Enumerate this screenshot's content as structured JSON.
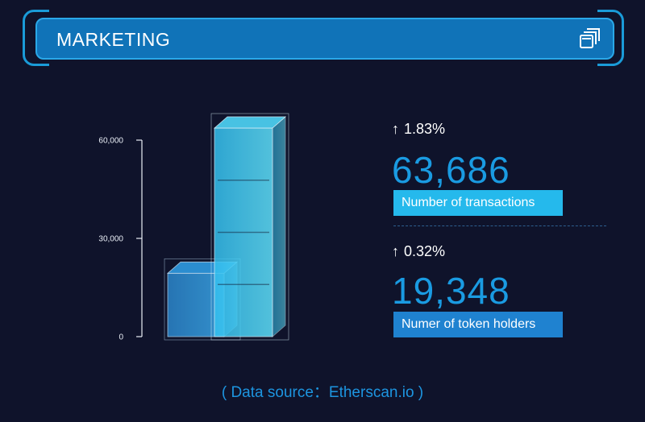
{
  "header": {
    "title": "MARKETING",
    "icon": "copy-windows-icon"
  },
  "chart_data": {
    "type": "bar",
    "style": "3d-stacked-cubes",
    "categories": [
      "token holders",
      "transactions"
    ],
    "values": [
      19348,
      63686
    ],
    "ylim": [
      0,
      60000
    ],
    "yticks": [
      0,
      30000,
      60000
    ],
    "ytick_labels": [
      "0",
      "30,000",
      "60,000"
    ],
    "colors": [
      "#2f8fd8",
      "#3fcff5"
    ]
  },
  "stats": [
    {
      "change": "1.83%",
      "direction": "up",
      "value": "63,686",
      "label": "Number of  transactions",
      "label_color": "#25b9ec"
    },
    {
      "change": "0.32%",
      "direction": "up",
      "value": "19,348",
      "label": "Numer of token holders",
      "label_color": "#1f82d0"
    }
  ],
  "source": "( Data source：Etherscan.io )"
}
